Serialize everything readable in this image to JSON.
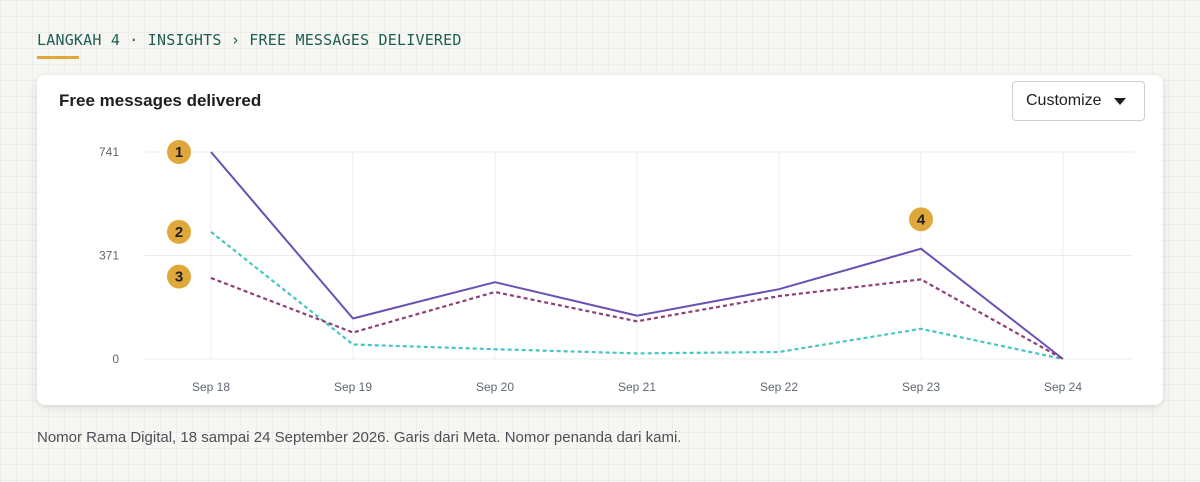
{
  "breadcrumb": "LANGKAH 4 · INSIGHTS › FREE MESSAGES DELIVERED",
  "card": {
    "title": "Free messages delivered",
    "customize_label": "Customize",
    "customize_icon": "caret-down-icon"
  },
  "footnote": "Nomor Rama Digital, 18 sampai 24 September 2026. Garis dari Meta. Nomor penanda dari kami.",
  "colors": {
    "accent": "#e0a83a",
    "breadcrumb": "#1d5c52",
    "grid": "#ececec"
  },
  "chart_data": {
    "type": "line",
    "title": "Free messages delivered",
    "xlabel": "",
    "ylabel": "",
    "categories": [
      "Sep 18",
      "Sep 19",
      "Sep 20",
      "Sep 21",
      "Sep 22",
      "Sep 23",
      "Sep 24"
    ],
    "yticks": [
      "741",
      "371",
      "0"
    ],
    "ylim": [
      0,
      741
    ],
    "grid": true,
    "series": [
      {
        "values": [
          741,
          145,
          275,
          155,
          250,
          395,
          0
        ],
        "color": "#6a4fb5",
        "style": "solid"
      },
      {
        "values": [
          455,
          52,
          35,
          20,
          25,
          108,
          0
        ],
        "color": "#45c7c1",
        "style": "dotted"
      },
      {
        "values": [
          290,
          95,
          240,
          135,
          225,
          285,
          0
        ],
        "color": "#8e3f78",
        "style": "dotted"
      }
    ],
    "markers": [
      {
        "label": "1",
        "x_index": 0,
        "y": 741
      },
      {
        "label": "2",
        "x_index": 0,
        "y": 455
      },
      {
        "label": "3",
        "x_index": 0,
        "y": 295
      },
      {
        "label": "4",
        "x_index": 5,
        "y": 500
      }
    ]
  }
}
